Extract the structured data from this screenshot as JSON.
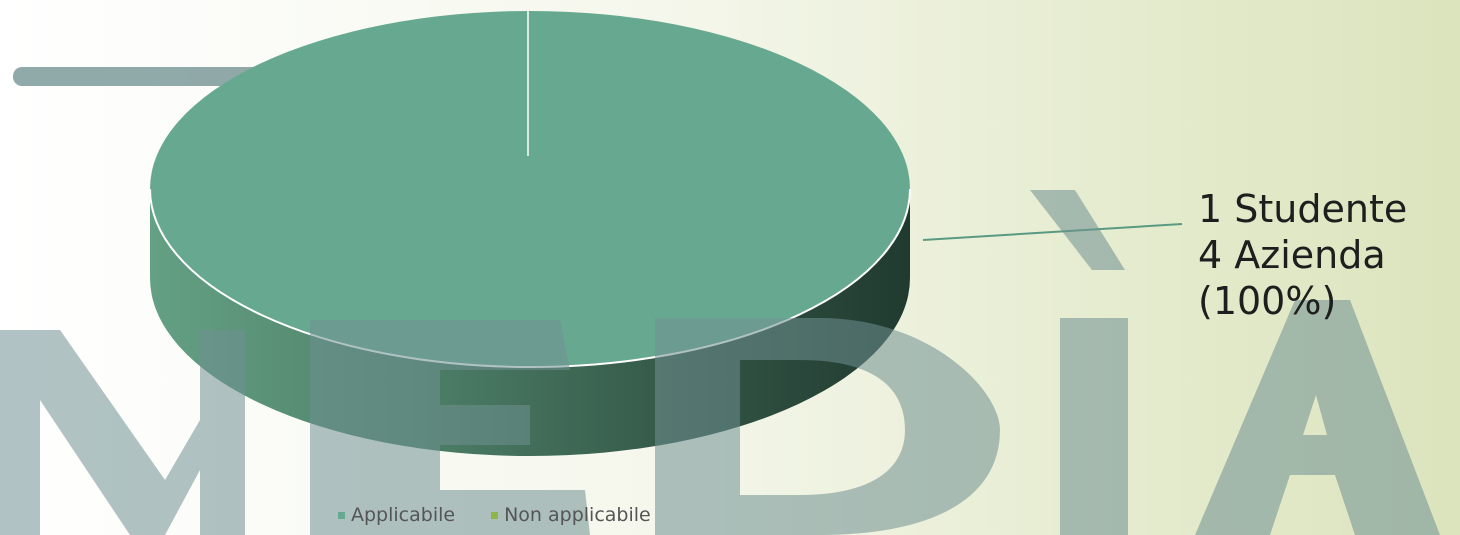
{
  "background_watermark": "MEDIA",
  "chart_data": {
    "type": "pie",
    "style": "3d",
    "slices": [
      {
        "label": "Applicabile",
        "value": 100,
        "color": "#67a990"
      },
      {
        "label": "Non applicabile",
        "value": 0,
        "color": "#8cb54a"
      }
    ],
    "data_label": {
      "lines": [
        "1 Studente",
        "4 Azienda",
        "(100%)"
      ]
    },
    "legend": {
      "placement": "bottom",
      "items": [
        {
          "label": "Applicabile",
          "color": "#67a990"
        },
        {
          "label": "Non applicabile",
          "color": "#8cb54a"
        }
      ]
    }
  },
  "colors": {
    "pie_top": "#67a990",
    "pie_side_light": "#5b9479",
    "pie_side_dark": "#223a30",
    "watermark": "#7d9a9a",
    "leader_line": "#5a9a82"
  }
}
